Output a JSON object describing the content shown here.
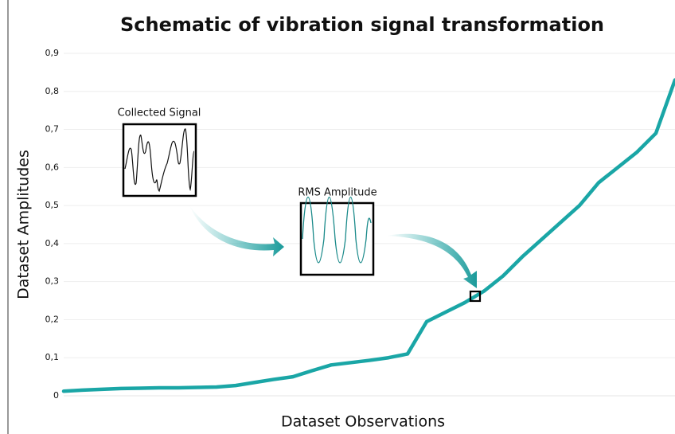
{
  "chart_data": {
    "type": "line",
    "title": "Schematic of vibration signal transformation",
    "x_label": "Dataset Observations",
    "y_label": "Dataset Amplitudes",
    "annotations": [
      "Collected Signal",
      "RMS Amplitude"
    ],
    "color": "#1aa6a6",
    "values": [
      0.012,
      0.015,
      0.017,
      0.019,
      0.02,
      0.021,
      0.021,
      0.022,
      0.023,
      0.027,
      0.035,
      0.043,
      0.05,
      0.066,
      0.081,
      0.087,
      0.093,
      0.1,
      0.11,
      0.195,
      0.22,
      0.245,
      0.275,
      0.315,
      0.365,
      0.41,
      0.455,
      0.5,
      0.56,
      0.6,
      0.64,
      0.69,
      0.83
    ],
    "ylim": [
      0,
      0.9
    ],
    "yticks": [
      0,
      {
        "value": 0.1,
        "label": "0,1"
      },
      {
        "value": 0.2,
        "label": "0,2"
      },
      {
        "value": 0.3,
        "label": "0,3"
      },
      {
        "value": 0.4,
        "label": "0,4"
      },
      {
        "value": 0.5,
        "label": "0,5"
      },
      {
        "value": 0.6,
        "label": "0,6"
      },
      {
        "value": 0.7,
        "label": "0,7"
      },
      {
        "value": 0.8,
        "label": "0,8"
      },
      {
        "value": 0.9,
        "label": "0,9"
      }
    ],
    "grid": true
  }
}
